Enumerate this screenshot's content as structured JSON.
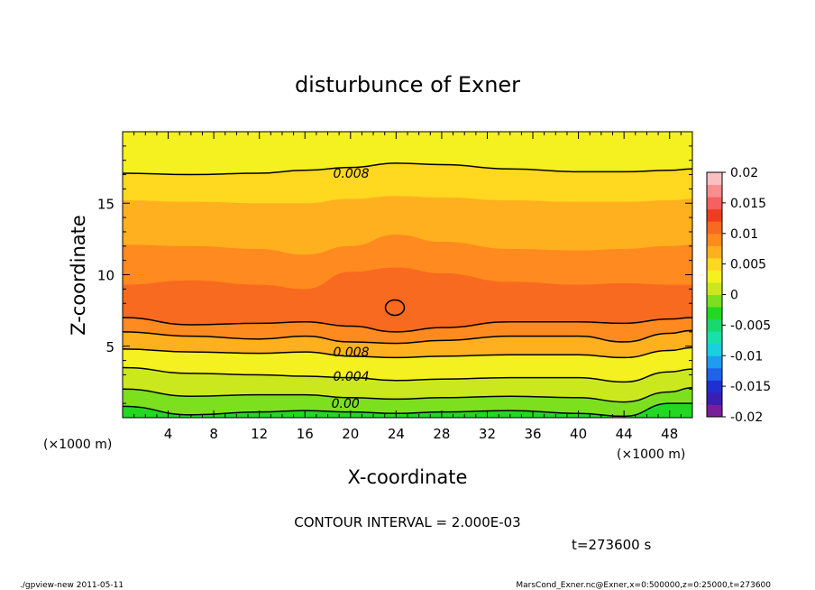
{
  "chart_data": {
    "type": "contour",
    "title": "disturbunce of Exner",
    "xlabel": "X-coordinate",
    "ylabel": "Z-coordinate",
    "x_unit_label": "(×1000 m)",
    "y_unit_label": "(×1000 m)",
    "xlim": [
      0,
      50
    ],
    "ylim": [
      0,
      20
    ],
    "x_ticks": [
      4,
      8,
      12,
      16,
      20,
      24,
      28,
      32,
      36,
      40,
      44,
      48
    ],
    "y_ticks": [
      5,
      10,
      15
    ],
    "contour_interval_text": "CONTOUR INTERVAL = 2.000E-03",
    "time_text": "t=273600 s",
    "contour_labels": [
      {
        "text": "0.008",
        "x": 18,
        "z": 17.1
      },
      {
        "text": "0.008",
        "x": 18,
        "z": 4.6
      },
      {
        "text": "0.004",
        "x": 18,
        "z": 2.9
      },
      {
        "text": "0.00",
        "x": 17.5,
        "z": 1.0
      }
    ],
    "colorbar": {
      "ticks": [
        "0.02",
        "0.015",
        "0.01",
        "0.005",
        "0",
        "-0.005",
        "-0.01",
        "-0.015",
        "-0.02"
      ],
      "min": -0.02,
      "max": 0.02,
      "colors": [
        "#7a1f9c",
        "#3a1fb0",
        "#1f2fd0",
        "#1f63e8",
        "#1f9cf0",
        "#19cfe0",
        "#19e0a8",
        "#19d870",
        "#22d822",
        "#7ce01f",
        "#cbe81f",
        "#f5f01f",
        "#ffd81f",
        "#ffb01f",
        "#ff8a1f",
        "#f86a1f",
        "#ef3d1f",
        "#f56060",
        "#f88e8e",
        "#fac0c0"
      ]
    }
  },
  "footer": {
    "left": "./gpview-new   2011-05-11",
    "right": "MarsCond_Exner.nc@Exner,x=0:500000,z=0:25000,t=273600"
  }
}
